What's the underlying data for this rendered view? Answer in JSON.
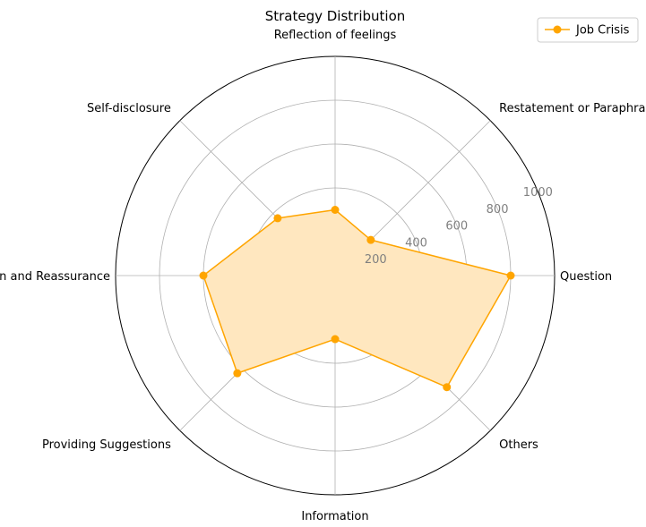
{
  "chart_data": {
    "type": "radar",
    "title": "Strategy Distribution",
    "categories": [
      "Question",
      "Restatement or Paraphrasing",
      "Reflection of feelings",
      "Self-disclosure",
      "Affirmation and Reassurance",
      "Providing Suggestions",
      "Information",
      "Others"
    ],
    "series": [
      {
        "name": "Job Crisis",
        "values": [
          800,
          230,
          300,
          370,
          600,
          630,
          290,
          720
        ]
      }
    ],
    "rlim": [
      0,
      1000
    ],
    "rticks": [
      200,
      400,
      600,
      800,
      1000
    ],
    "rtick_labels": [
      "200",
      "400",
      "600",
      "800",
      "1000"
    ],
    "grid": true,
    "legend_position": "top-right",
    "colors": {
      "series": "#FFA500",
      "fill": "#FFE7BF",
      "grid": "#b0b0b0",
      "frame": "#000000"
    }
  }
}
